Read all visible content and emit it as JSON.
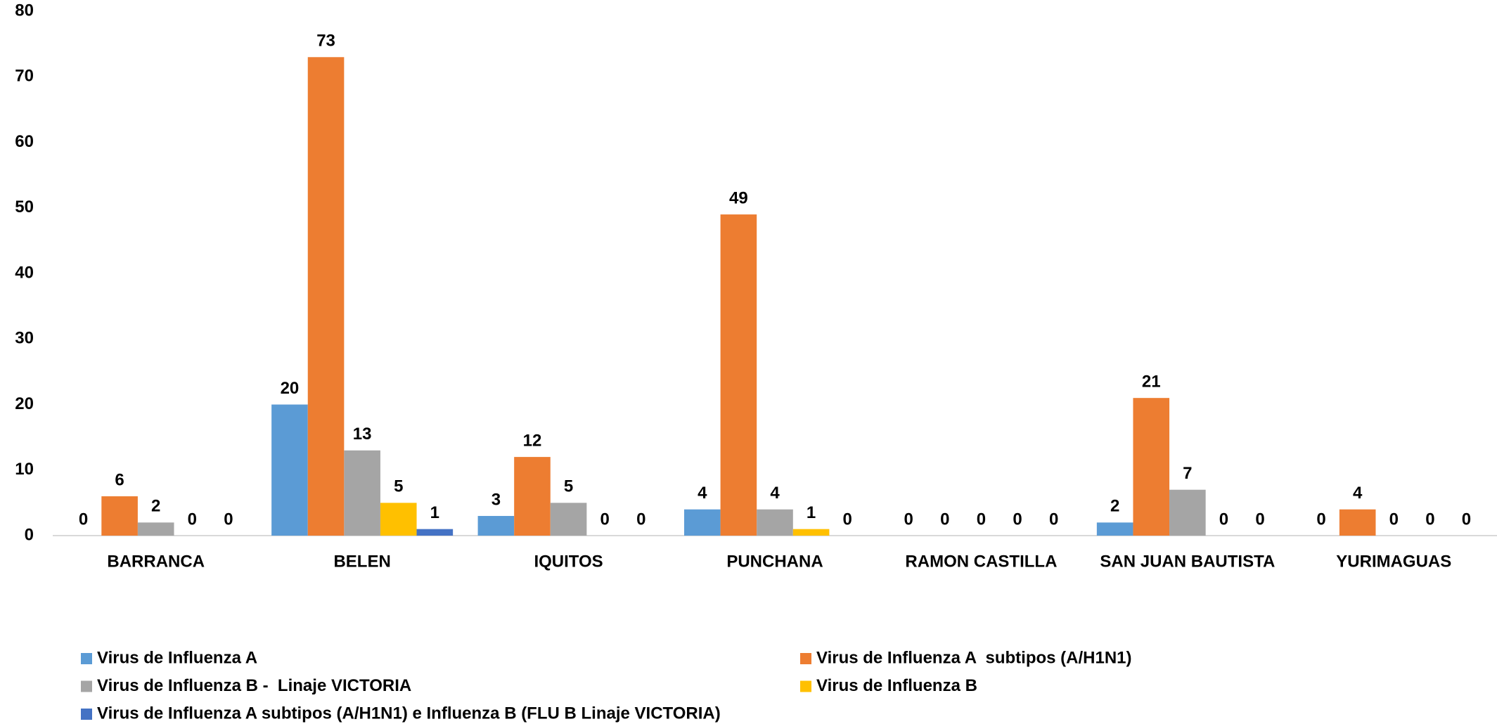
{
  "chart_data": {
    "type": "bar",
    "categories": [
      "BARRANCA",
      "BELEN",
      "IQUITOS",
      "PUNCHANA",
      "RAMON CASTILLA",
      "SAN JUAN BAUTISTA",
      "YURIMAGUAS"
    ],
    "series": [
      {
        "name": "Virus de Influenza A",
        "color": "#5b9bd5",
        "values": [
          0,
          20,
          3,
          4,
          0,
          2,
          0
        ]
      },
      {
        "name": "Virus de Influenza A  subtipos (A/H1N1)",
        "color": "#ed7d31",
        "values": [
          6,
          73,
          12,
          49,
          0,
          21,
          4
        ]
      },
      {
        "name": "Virus de Influenza B -  Linaje VICTORIA",
        "color": "#a5a5a5",
        "values": [
          2,
          13,
          5,
          4,
          0,
          7,
          0
        ]
      },
      {
        "name": "Virus de Influenza B",
        "color": "#ffc000",
        "values": [
          0,
          5,
          0,
          1,
          0,
          0,
          0
        ]
      },
      {
        "name": "Virus de Influenza A subtipos (A/H1N1) e Influenza B (FLU B Linaje VICTORIA)",
        "color": "#4472c4",
        "values": [
          0,
          1,
          0,
          0,
          0,
          0,
          0
        ]
      }
    ],
    "ylim": [
      0,
      80
    ],
    "yticks": [
      0,
      10,
      20,
      30,
      40,
      50,
      60,
      70,
      80
    ],
    "grid": false,
    "legend": "bottom"
  }
}
